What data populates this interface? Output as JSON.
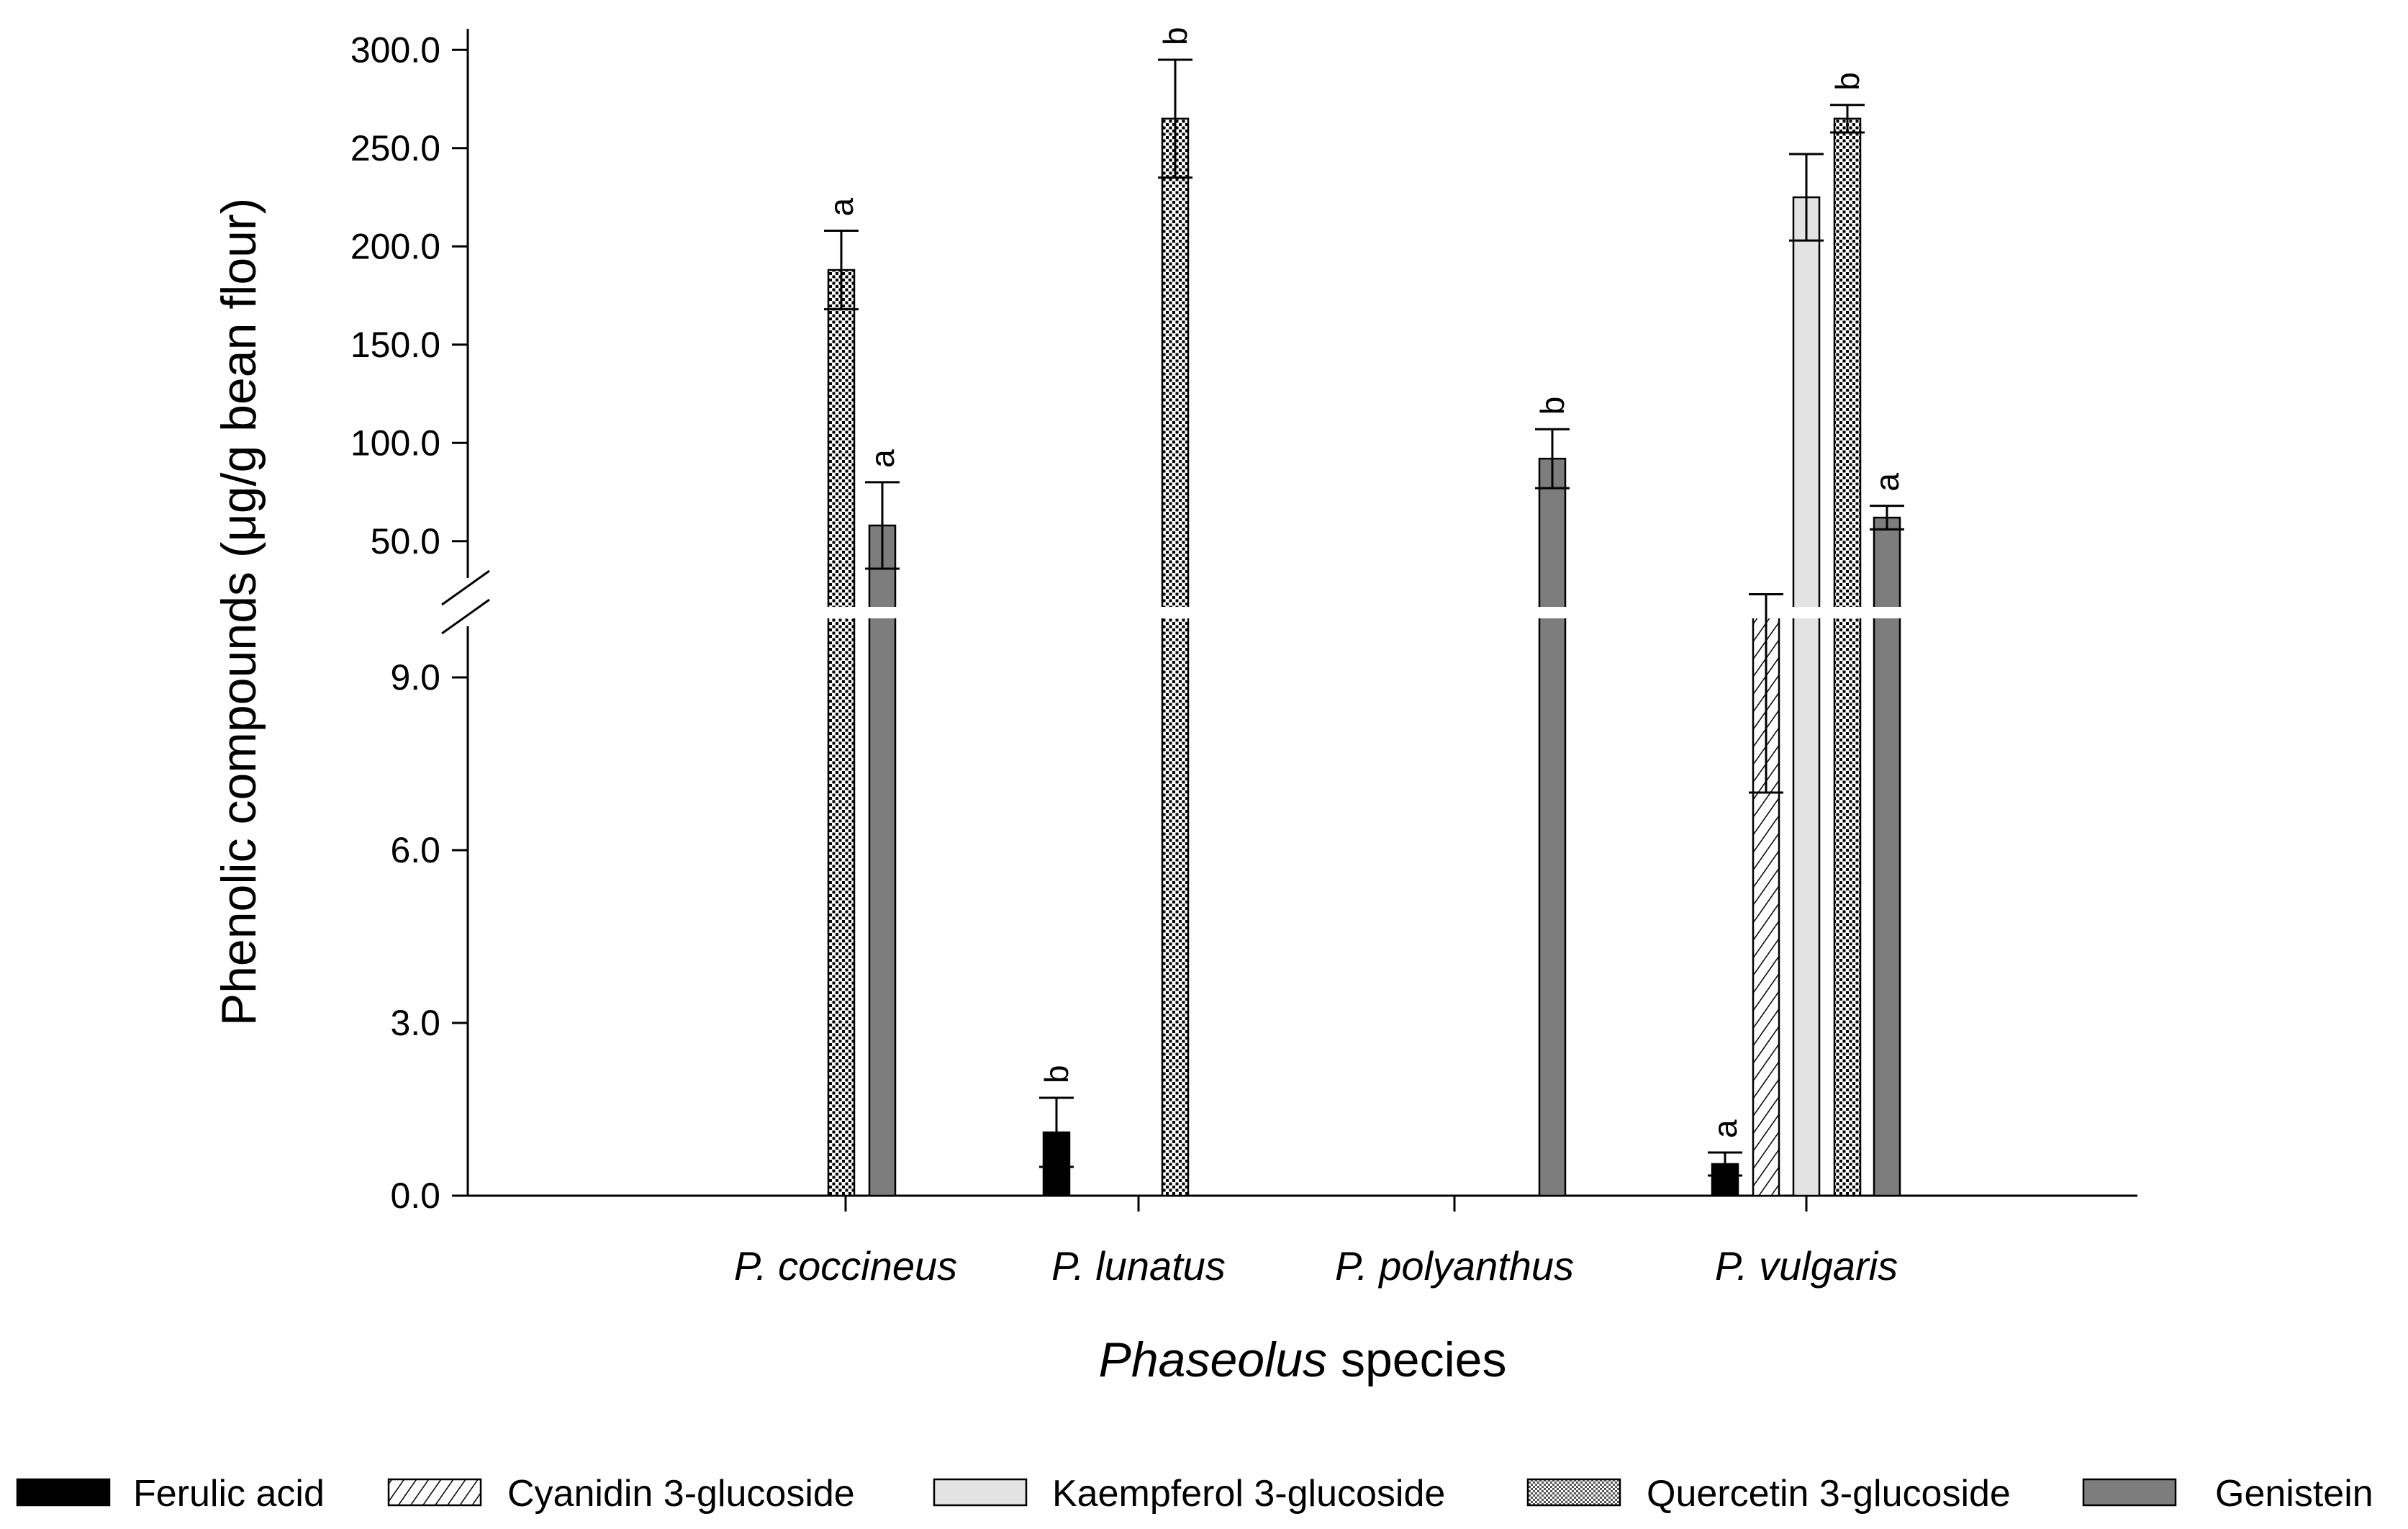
{
  "chart_data": {
    "type": "bar",
    "title": "",
    "xlabel_italic": "Phaseolus",
    "xlabel_rest": " species",
    "ylabel": "Phenolic compounds (μg/g bean flour)",
    "categories": [
      "P. coccineus",
      "P. lunatus",
      "P. polyanthus",
      "P. vulgaris"
    ],
    "axis_break": true,
    "y_lower": {
      "ylim": [
        0,
        10
      ],
      "ticks": [
        0.0,
        3.0,
        6.0,
        9.0
      ],
      "tick_labels": [
        "0.0",
        "3.0",
        "6.0",
        "9.0"
      ]
    },
    "y_upper": {
      "ylim": [
        10,
        300
      ],
      "ticks": [
        50,
        100,
        150,
        200,
        250,
        300
      ],
      "tick_labels": [
        "50.0",
        "100.0",
        "150.0",
        "200.0",
        "250.0",
        "300.0"
      ]
    },
    "series": [
      {
        "name": "Ferulic acid",
        "pattern": "solid-black",
        "values": [
          null,
          1.1,
          null,
          0.55
        ],
        "errors": [
          null,
          0.6,
          null,
          0.2
        ],
        "letters": [
          null,
          "b",
          null,
          "a"
        ]
      },
      {
        "name": "Cyanidin 3-glucoside",
        "pattern": "diagonal-hatch",
        "values": [
          null,
          null,
          null,
          15
        ],
        "errors": [
          null,
          null,
          null,
          8
        ],
        "letters": [
          null,
          null,
          null,
          ""
        ]
      },
      {
        "name": "Kaempferol 3-glucoside",
        "pattern": "light-gray",
        "values": [
          null,
          null,
          null,
          225
        ],
        "errors": [
          null,
          null,
          null,
          22
        ],
        "letters": [
          null,
          null,
          null,
          ""
        ]
      },
      {
        "name": "Quercetin 3-glucoside",
        "pattern": "dense-dots",
        "values": [
          188,
          265,
          null,
          265
        ],
        "errors": [
          20,
          30,
          null,
          7
        ],
        "letters": [
          "a",
          "b",
          null,
          "b"
        ]
      },
      {
        "name": "Genistein",
        "pattern": "dark-gray",
        "values": [
          58,
          null,
          92,
          62
        ],
        "errors": [
          22,
          null,
          15,
          6
        ],
        "letters": [
          "a",
          null,
          "b",
          "a"
        ]
      }
    ]
  },
  "colors": {
    "ferulic": "#000000",
    "kaempferol": "#e3e3e3",
    "genistein": "#7d7d7d",
    "axis": "#000000"
  }
}
